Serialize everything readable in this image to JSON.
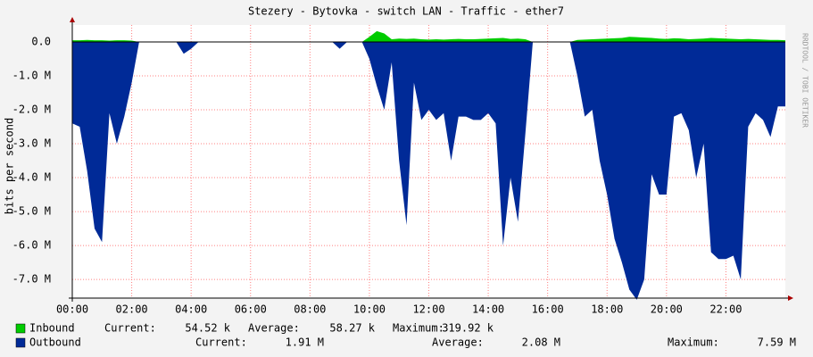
{
  "chart_data": {
    "type": "area",
    "title": "Stezery - Bytovka - switch LAN - Traffic - ether7",
    "y_label": "bits per second",
    "watermark": "RRDTOOL / TOBI OETIKER",
    "grid": true,
    "xlim": [
      0,
      24
    ],
    "xticks": [
      {
        "value": 0,
        "label": "00:00"
      },
      {
        "value": 2,
        "label": "02:00"
      },
      {
        "value": 4,
        "label": "04:00"
      },
      {
        "value": 6,
        "label": "06:00"
      },
      {
        "value": 8,
        "label": "08:00"
      },
      {
        "value": 10,
        "label": "10:00"
      },
      {
        "value": 12,
        "label": "12:00"
      },
      {
        "value": 14,
        "label": "14:00"
      },
      {
        "value": 16,
        "label": "16:00"
      },
      {
        "value": 18,
        "label": "18:00"
      },
      {
        "value": 20,
        "label": "20:00"
      },
      {
        "value": 22,
        "label": "22:00"
      }
    ],
    "ylim": [
      -7550000,
      500000
    ],
    "yticks": [
      {
        "value": 0,
        "label": "0.0"
      },
      {
        "value": -1000000,
        "label": "-1.0 M"
      },
      {
        "value": -2000000,
        "label": "-2.0 M"
      },
      {
        "value": -3000000,
        "label": "-3.0 M"
      },
      {
        "value": -4000000,
        "label": "-4.0 M"
      },
      {
        "value": -5000000,
        "label": "-5.0 M"
      },
      {
        "value": -6000000,
        "label": "-6.0 M"
      },
      {
        "value": -7000000,
        "label": "-7.0 M"
      }
    ],
    "x": [
      0,
      0.25,
      0.5,
      0.75,
      1,
      1.25,
      1.5,
      1.75,
      2,
      2.25,
      2.5,
      2.75,
      3,
      3.25,
      3.5,
      3.75,
      4,
      4.25,
      4.5,
      4.75,
      5,
      5.25,
      5.5,
      5.75,
      6,
      6.25,
      6.5,
      6.75,
      7,
      7.25,
      7.5,
      7.75,
      8,
      8.25,
      8.5,
      8.75,
      9,
      9.25,
      9.5,
      9.75,
      10,
      10.25,
      10.5,
      10.75,
      11,
      11.25,
      11.5,
      11.75,
      12,
      12.25,
      12.5,
      12.75,
      13,
      13.25,
      13.5,
      13.75,
      14,
      14.25,
      14.5,
      14.75,
      15,
      15.25,
      15.5,
      15.75,
      16,
      16.25,
      16.5,
      16.75,
      17,
      17.25,
      17.5,
      17.75,
      18,
      18.25,
      18.5,
      18.75,
      19,
      19.25,
      19.5,
      19.75,
      20,
      20.25,
      20.5,
      20.75,
      21,
      21.25,
      21.5,
      21.75,
      22,
      22.25,
      22.5,
      22.75,
      23,
      23.25,
      23.5,
      23.75,
      24
    ],
    "series": [
      {
        "name": "Inbound",
        "color": "#00cc00",
        "values": [
          50000,
          50000,
          60000,
          50000,
          50000,
          40000,
          50000,
          50000,
          40000,
          0,
          0,
          0,
          0,
          0,
          0,
          0,
          0,
          0,
          0,
          0,
          0,
          0,
          0,
          0,
          0,
          0,
          0,
          0,
          0,
          0,
          0,
          0,
          0,
          0,
          0,
          0,
          0,
          0,
          0,
          0,
          150000,
          320000,
          250000,
          80000,
          100000,
          90000,
          100000,
          80000,
          70000,
          80000,
          70000,
          80000,
          90000,
          80000,
          80000,
          90000,
          100000,
          110000,
          120000,
          90000,
          100000,
          80000,
          0,
          0,
          0,
          0,
          0,
          0,
          60000,
          70000,
          80000,
          90000,
          100000,
          110000,
          120000,
          150000,
          140000,
          130000,
          120000,
          100000,
          90000,
          110000,
          100000,
          80000,
          90000,
          100000,
          120000,
          110000,
          100000,
          90000,
          80000,
          90000,
          80000,
          70000,
          60000,
          60000,
          50000
        ],
        "stats": [
          {
            "label": "Current:",
            "value": "54.52 k"
          },
          {
            "label": "Average:",
            "value": "58.27 k"
          },
          {
            "label": "Maximum:",
            "value": "319.92 k"
          }
        ]
      },
      {
        "name": "Outbound",
        "color": "#002a97",
        "values": [
          -2400000,
          -2500000,
          -3800000,
          -5500000,
          -5900000,
          -2100000,
          -3000000,
          -2200000,
          -1200000,
          0,
          0,
          0,
          0,
          0,
          0,
          -350000,
          -200000,
          0,
          0,
          0,
          0,
          0,
          0,
          0,
          0,
          0,
          0,
          0,
          0,
          0,
          0,
          0,
          0,
          0,
          0,
          0,
          -200000,
          0,
          0,
          0,
          -500000,
          -1300000,
          -2000000,
          -600000,
          -3500000,
          -5400000,
          -1200000,
          -2300000,
          -2000000,
          -2300000,
          -2100000,
          -3500000,
          -2200000,
          -2200000,
          -2300000,
          -2300000,
          -2100000,
          -2400000,
          -6000000,
          -4000000,
          -5300000,
          -2700000,
          0,
          0,
          0,
          0,
          0,
          0,
          -1000000,
          -2200000,
          -2000000,
          -3500000,
          -4500000,
          -5800000,
          -6500000,
          -7300000,
          -7600000,
          -7000000,
          -3900000,
          -4500000,
          -4500000,
          -2200000,
          -2100000,
          -2600000,
          -4000000,
          -3000000,
          -6200000,
          -6400000,
          -6400000,
          -6300000,
          -7000000,
          -2500000,
          -2100000,
          -2300000,
          -2800000,
          -1900000,
          -1900000
        ],
        "stats": [
          {
            "label": "Current:",
            "value": "1.91 M"
          },
          {
            "label": "Average:",
            "value": "2.08 M"
          },
          {
            "label": "Maximum:",
            "value": "7.59 M"
          }
        ]
      }
    ]
  }
}
